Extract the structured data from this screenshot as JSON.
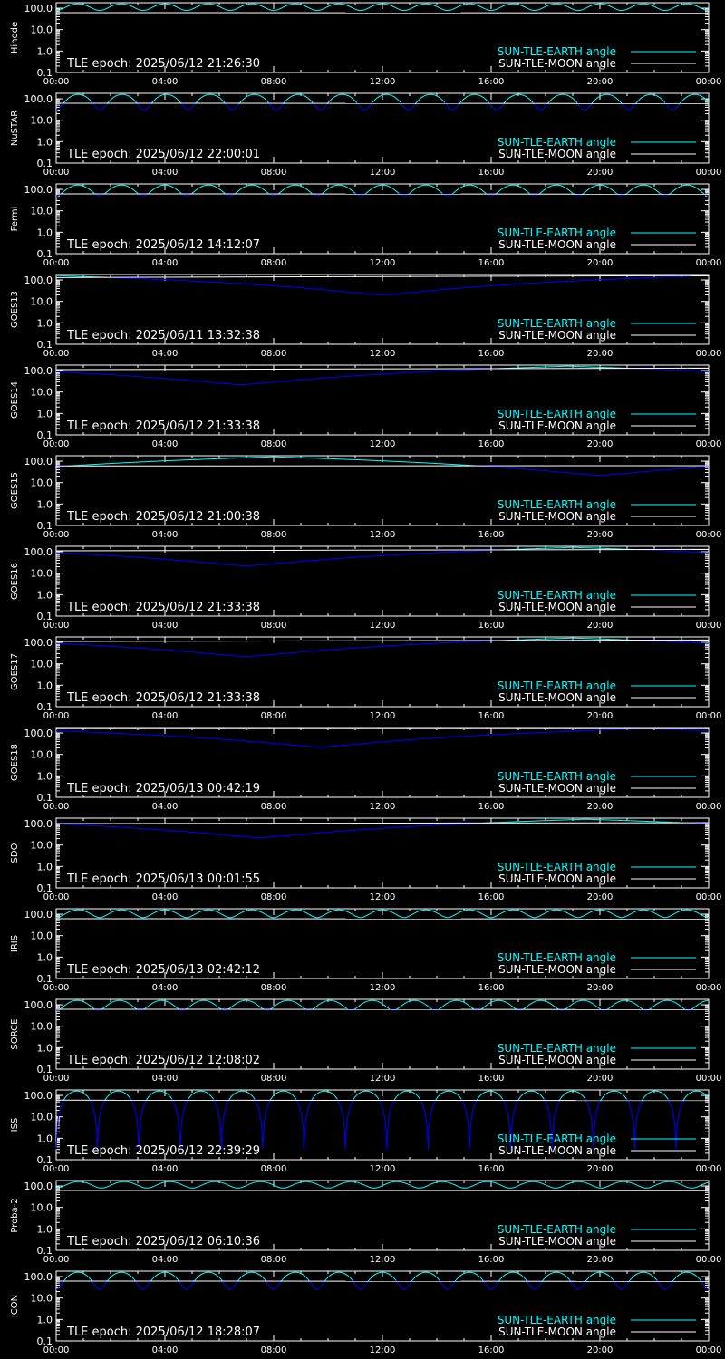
{
  "colors": {
    "background": "#000000",
    "axes": "#ffffff",
    "earth_line": "#00ffff",
    "moon_line": "#ffffff",
    "dip_line": "#0000ff"
  },
  "legend": {
    "earth": "SUN-TLE-EARTH angle",
    "moon": "SUN-TLE-MOON angle",
    "placement": "bottom-right"
  },
  "chart_data": [
    {
      "type": "line",
      "ylabel": "Hinode",
      "epoch": "TLE epoch: 2025/06/12 21:26:30",
      "model": "lowOrbit",
      "period_h": 1.6,
      "dip_deg": 78,
      "moon_start_deg": 62,
      "moon_end_deg": 60
    },
    {
      "type": "line",
      "ylabel": "NuSTAR",
      "epoch": "TLE epoch: 2025/06/12 22:00:01",
      "model": "lowOrbit",
      "period_h": 1.62,
      "dip_deg": 30,
      "moon_start_deg": 62,
      "moon_end_deg": 60
    },
    {
      "type": "line",
      "ylabel": "Fermi",
      "epoch": "TLE epoch: 2025/06/12 14:12:07",
      "model": "lowOrbit",
      "period_h": 1.6,
      "dip_deg": 50,
      "moon_start_deg": 62,
      "moon_end_deg": 60
    },
    {
      "type": "line",
      "ylabel": "GOES13",
      "epoch": "TLE epoch: 2025/06/11 13:32:38",
      "model": "geo",
      "min_deg": 20,
      "min_at_h": 12,
      "max_deg": 160,
      "moon_start_deg": 130,
      "moon_end_deg": 160
    },
    {
      "type": "line",
      "ylabel": "GOES14",
      "epoch": "TLE epoch: 2025/06/12 21:33:38",
      "model": "geo",
      "min_deg": 22,
      "min_at_h": 6.8,
      "max_deg": 160,
      "moon_start_deg": 110,
      "moon_end_deg": 130
    },
    {
      "type": "line",
      "ylabel": "GOES15",
      "epoch": "TLE epoch: 2025/06/12 21:00:38",
      "model": "geo",
      "min_deg": 22,
      "min_at_h": 20,
      "max_deg": 160,
      "moon_start_deg": 60,
      "moon_end_deg": 62
    },
    {
      "type": "line",
      "ylabel": "GOES16",
      "epoch": "TLE epoch: 2025/06/12 21:33:38",
      "model": "geo",
      "min_deg": 22,
      "min_at_h": 7,
      "max_deg": 160,
      "moon_start_deg": 110,
      "moon_end_deg": 130
    },
    {
      "type": "line",
      "ylabel": "GOES17",
      "epoch": "TLE epoch: 2025/06/12 21:33:38",
      "model": "geo",
      "min_deg": 22,
      "min_at_h": 7,
      "max_deg": 160,
      "moon_start_deg": 110,
      "moon_end_deg": 130
    },
    {
      "type": "line",
      "ylabel": "GOES18",
      "epoch": "TLE epoch: 2025/06/13 00:42:19",
      "model": "geo",
      "min_deg": 22,
      "min_at_h": 9.7,
      "max_deg": 160,
      "moon_start_deg": 160,
      "moon_end_deg": 160
    },
    {
      "type": "line",
      "ylabel": "SDO",
      "epoch": "TLE epoch: 2025/06/13 00:01:55",
      "model": "geo",
      "min_deg": 22,
      "min_at_h": 7.5,
      "max_deg": 160,
      "moon_start_deg": 100,
      "moon_end_deg": 110
    },
    {
      "type": "line",
      "ylabel": "IRIS",
      "epoch": "TLE epoch: 2025/06/13 02:42:12",
      "model": "lowOrbit",
      "period_h": 1.6,
      "dip_deg": 70,
      "moon_start_deg": 62,
      "moon_end_deg": 60
    },
    {
      "type": "line",
      "ylabel": "SORCE",
      "epoch": "TLE epoch: 2025/06/12 12:08:02",
      "model": "lowOrbit",
      "period_h": 1.55,
      "dip_deg": 55,
      "moon_start_deg": 62,
      "moon_end_deg": 60
    },
    {
      "type": "line",
      "ylabel": "ISS",
      "epoch": "TLE epoch: 2025/06/12 22:39:29",
      "model": "deep",
      "period_h": 1.52,
      "dip_deg": 0.3,
      "moon_start_deg": 60,
      "moon_end_deg": 58
    },
    {
      "type": "line",
      "ylabel": "Proba-2",
      "epoch": "TLE epoch: 2025/06/12 06:10:36",
      "model": "lowOrbit",
      "period_h": 1.67,
      "dip_deg": 80,
      "moon_start_deg": 62,
      "moon_end_deg": 60
    },
    {
      "type": "line",
      "ylabel": "ICON",
      "epoch": "TLE epoch: 2025/06/12 18:28:07",
      "model": "lowOrbit",
      "period_h": 1.6,
      "dip_deg": 25,
      "moon_start_deg": 62,
      "moon_end_deg": 60
    }
  ],
  "axes": {
    "x_ticks": [
      "00:00",
      "04:00",
      "08:00",
      "12:00",
      "16:00",
      "20:00",
      "00:00"
    ],
    "x_range_h": [
      0,
      24
    ],
    "y_ticks": [
      "100.0",
      "10.0",
      "1.0",
      "0.1"
    ],
    "y_scale": "log",
    "y_range": [
      0.1,
      180
    ]
  }
}
